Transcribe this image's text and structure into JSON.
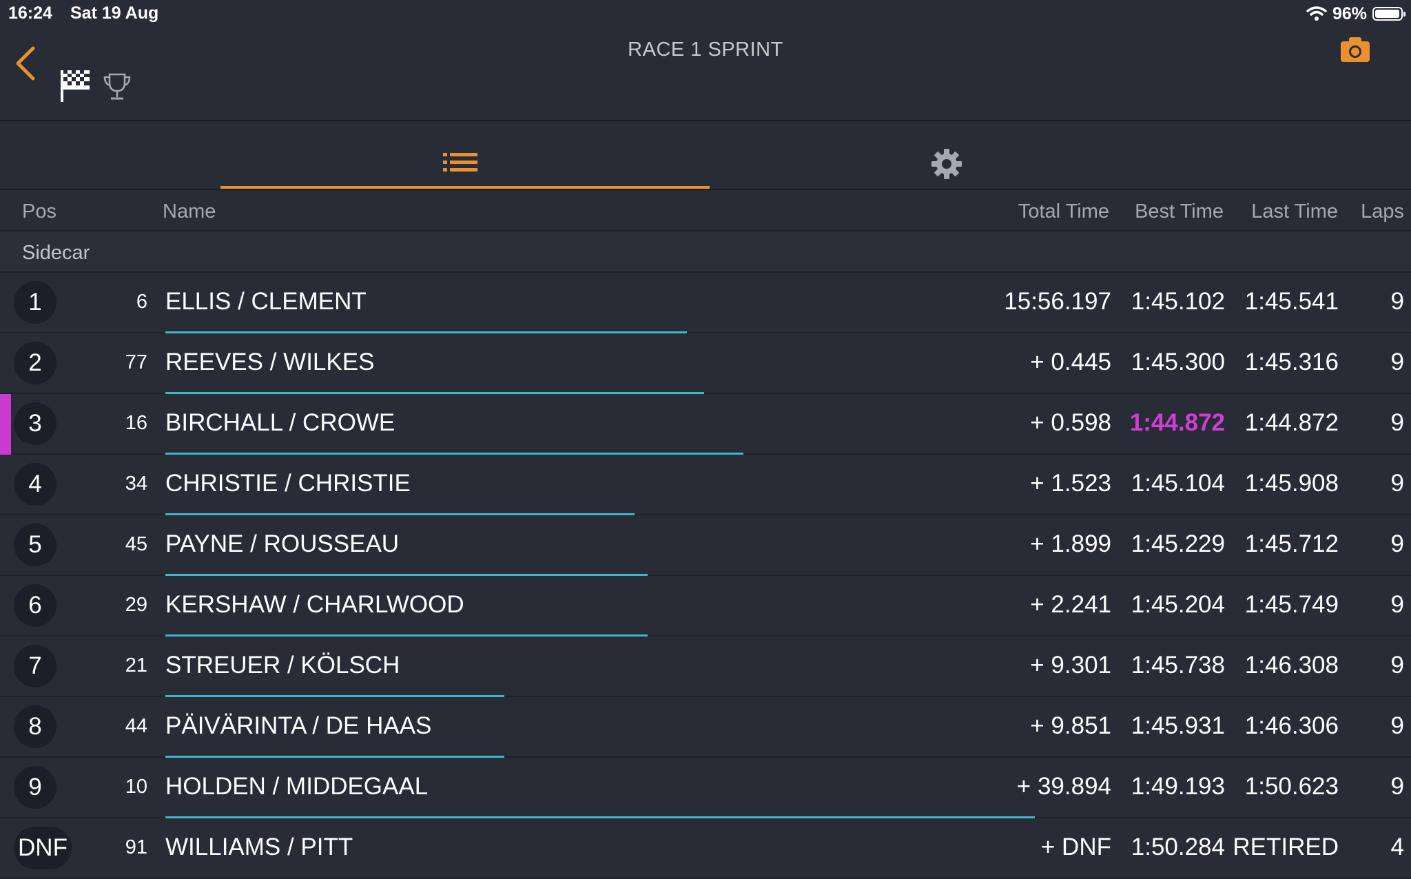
{
  "status": {
    "time": "16:24",
    "date": "Sat 19 Aug",
    "battery": "96%",
    "battery_level": 0.96
  },
  "header": {
    "title": "RACE 1 SPRINT"
  },
  "colors": {
    "accent": "#e8912d",
    "fastest": "#d23dd6",
    "gap_bar": "#3fb6c8",
    "background": "#282c37"
  },
  "icons": {
    "back": "chevron-left-icon",
    "flag": "checkered-flag-icon",
    "trophy": "trophy-icon",
    "camera": "camera-icon",
    "list": "list-icon",
    "settings": "gear-icon",
    "wifi": "wifi-icon",
    "battery": "battery-icon"
  },
  "tabs": [
    {
      "name": "results-list",
      "active": true
    },
    {
      "name": "settings",
      "active": false
    }
  ],
  "columns": {
    "pos": "Pos",
    "name": "Name",
    "total": "Total Time",
    "best": "Best Time",
    "last": "Last Time",
    "laps": "Laps"
  },
  "class_label": "Sidecar",
  "results": [
    {
      "pos": "1",
      "num": "6",
      "name": "ELLIS / CLEMENT",
      "total": "15:56.197",
      "best": "1:45.102",
      "last": "1:45.541",
      "laps": "9",
      "fastest": false,
      "bar_fraction": 0.6
    },
    {
      "pos": "2",
      "num": "77",
      "name": "REEVES / WILKES",
      "total": "+ 0.445",
      "best": "1:45.300",
      "last": "1:45.316",
      "laps": "9",
      "fastest": false,
      "bar_fraction": 0.62
    },
    {
      "pos": "3",
      "num": "16",
      "name": "BIRCHALL / CROWE",
      "total": "+ 0.598",
      "best": "1:44.872",
      "last": "1:44.872",
      "laps": "9",
      "fastest": true,
      "bar_fraction": 0.665
    },
    {
      "pos": "4",
      "num": "34",
      "name": "CHRISTIE / CHRISTIE",
      "total": "+ 1.523",
      "best": "1:45.104",
      "last": "1:45.908",
      "laps": "9",
      "fastest": false,
      "bar_fraction": 0.54
    },
    {
      "pos": "5",
      "num": "45",
      "name": "PAYNE / ROUSSEAU",
      "total": "+ 1.899",
      "best": "1:45.229",
      "last": "1:45.712",
      "laps": "9",
      "fastest": false,
      "bar_fraction": 0.555
    },
    {
      "pos": "6",
      "num": "29",
      "name": "KERSHAW / CHARLWOOD",
      "total": "+ 2.241",
      "best": "1:45.204",
      "last": "1:45.749",
      "laps": "9",
      "fastest": false,
      "bar_fraction": 0.555
    },
    {
      "pos": "7",
      "num": "21",
      "name": "STREUER / KÖLSCH",
      "total": "+ 9.301",
      "best": "1:45.738",
      "last": "1:46.308",
      "laps": "9",
      "fastest": false,
      "bar_fraction": 0.39
    },
    {
      "pos": "8",
      "num": "44",
      "name": "PÄIVÄRINTA / DE HAAS",
      "total": "+ 9.851",
      "best": "1:45.931",
      "last": "1:46.306",
      "laps": "9",
      "fastest": false,
      "bar_fraction": 0.39
    },
    {
      "pos": "9",
      "num": "10",
      "name": "HOLDEN / MIDDEGAAL",
      "total": "+ 39.894",
      "best": "1:49.193",
      "last": "1:50.623",
      "laps": "9",
      "fastest": false,
      "bar_fraction": 1.0
    },
    {
      "pos": "DNF",
      "num": "91",
      "name": "WILLIAMS / PITT",
      "total": "+ DNF",
      "best": "1:50.284",
      "last": "RETIRED",
      "laps": "4",
      "fastest": false,
      "bar_fraction": 0
    }
  ]
}
